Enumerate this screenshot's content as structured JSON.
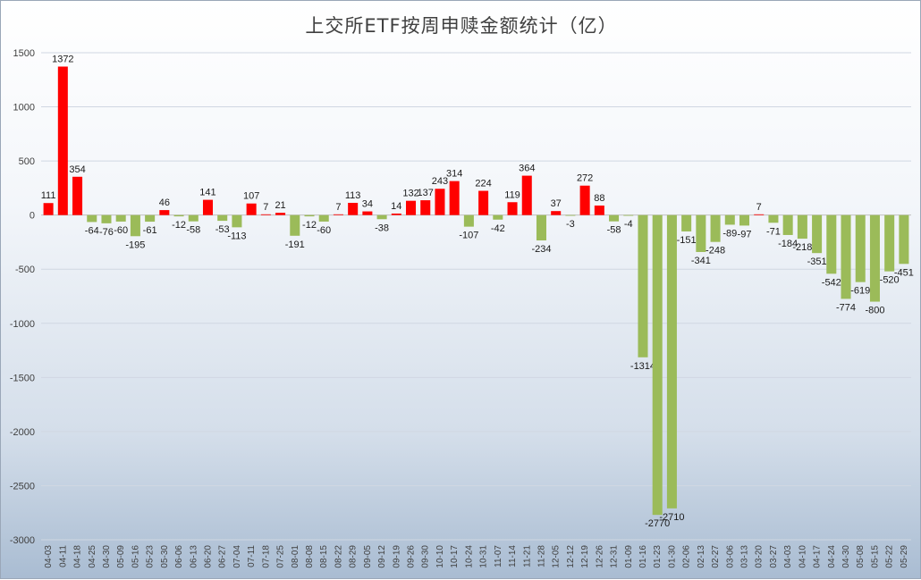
{
  "chart_data": {
    "type": "bar",
    "title": "上交所ETF按周申赎金额统计（亿）",
    "xlabel": "",
    "ylabel": "",
    "ylim": [
      -3000,
      1500
    ],
    "yticks": [
      1500,
      1000,
      500,
      0,
      -500,
      -1000,
      -1500,
      -2000,
      -2500,
      -3000
    ],
    "grid": true,
    "legend": "none",
    "positive_color": "#ff0000",
    "negative_color": "#9bbb59",
    "categories": [
      "04-03",
      "04-11",
      "04-18",
      "04-25",
      "04-30",
      "05-09",
      "05-16",
      "05-23",
      "05-30",
      "06-06",
      "06-13",
      "06-20",
      "06-27",
      "07-04",
      "07-11",
      "07-18",
      "07-25",
      "08-01",
      "08-08",
      "08-15",
      "08-22",
      "08-29",
      "09-05",
      "09-12",
      "09-19",
      "09-26",
      "09-30",
      "10-10",
      "10-17",
      "10-24",
      "10-31",
      "11-07",
      "11-14",
      "11-21",
      "11-28",
      "12-05",
      "12-12",
      "12-19",
      "12-26",
      "12-31",
      "01-09",
      "01-16",
      "01-23",
      "01-30",
      "02-06",
      "02-13",
      "02-27",
      "03-06",
      "03-13",
      "03-20",
      "03-27",
      "04-03",
      "04-10",
      "04-17",
      "04-24",
      "04-30",
      "05-08",
      "05-15",
      "05-22",
      "05-29"
    ],
    "values": [
      111,
      1372,
      354,
      -64,
      -76,
      -60,
      -195,
      -61,
      46,
      -12,
      -58,
      141,
      -53,
      -113,
      107,
      7,
      21,
      -191,
      -12,
      -60,
      7,
      113,
      34,
      -38,
      14,
      132,
      137,
      243,
      314,
      -107,
      224,
      -42,
      119,
      364,
      -234,
      37,
      -3,
      272,
      88,
      -58,
      -4,
      -1314,
      -2770,
      -2710,
      -151,
      -341,
      -248,
      -89,
      -97,
      7,
      -71,
      -184,
      -218,
      -351,
      -542,
      -774,
      -619,
      -800,
      -520,
      -451
    ]
  }
}
